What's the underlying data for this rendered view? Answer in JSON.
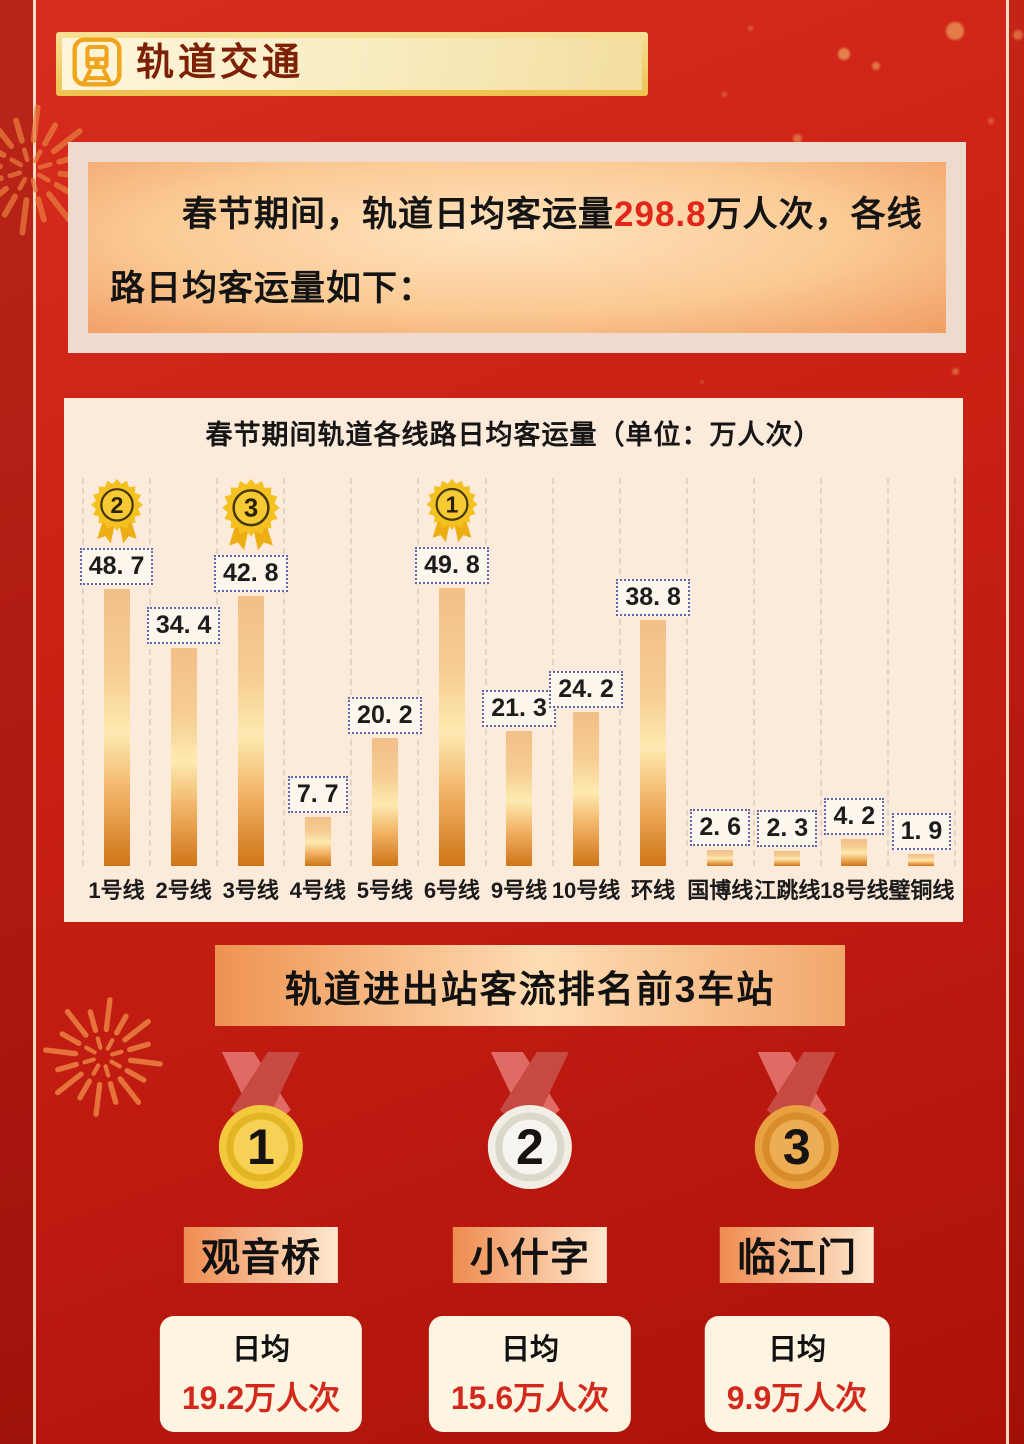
{
  "header": {
    "title": "轨道交通",
    "icon": "train-icon"
  },
  "intro": {
    "text_before": "春节期间，轨道日均客运量",
    "highlight": "298.8",
    "text_after": "万人次，各线路日均客运量如下："
  },
  "chart_data": {
    "type": "bar",
    "title": "春节期间轨道各线路日均客运量（单位：万人次）",
    "unit": "万人次",
    "categories": [
      "1号线",
      "2号线",
      "3号线",
      "4号线",
      "5号线",
      "6号线",
      "9号线",
      "10号线",
      "环线",
      "国博线",
      "江跳线",
      "18号线",
      "璧铜线"
    ],
    "values": [
      48.7,
      34.4,
      42.8,
      7.7,
      20.2,
      49.8,
      21.3,
      24.2,
      38.8,
      2.6,
      2.3,
      4.2,
      1.9
    ],
    "value_labels": [
      "48. 7",
      "34. 4",
      "42. 8",
      "7. 7",
      "20. 2",
      "49. 8",
      "21. 3",
      "24. 2",
      "38. 8",
      "2. 6",
      "2. 3",
      "4. 2",
      "1. 9"
    ],
    "rank_badges": [
      {
        "category": "6号线",
        "rank": "1"
      },
      {
        "category": "1号线",
        "rank": "2"
      },
      {
        "category": "3号线",
        "rank": "3"
      }
    ],
    "ylim": [
      0,
      50
    ],
    "legend": "none",
    "grid": "vertical-dashed"
  },
  "ranking": {
    "banner": "轨道进出站客流排名前3车站",
    "stations": [
      {
        "rank": "1",
        "medal": "gold",
        "name": "观音桥",
        "stat_label": "日均",
        "stat_value": "19.2万人次"
      },
      {
        "rank": "2",
        "medal": "silver",
        "name": "小什字",
        "stat_label": "日均",
        "stat_value": "15.6万人次"
      },
      {
        "rank": "3",
        "medal": "bronze",
        "name": "临江门",
        "stat_label": "日均",
        "stat_value": "9.9万人次"
      }
    ]
  },
  "colors": {
    "background_red": "#c62016",
    "highlight_red": "#e3261a",
    "stat_red": "#d3291c",
    "gold": "#f0a41c",
    "bar_bottom": "#cf7517",
    "bar_glow": "#fdeab0",
    "label_border": "#6066aa",
    "panel_peach": "#fceadb"
  }
}
